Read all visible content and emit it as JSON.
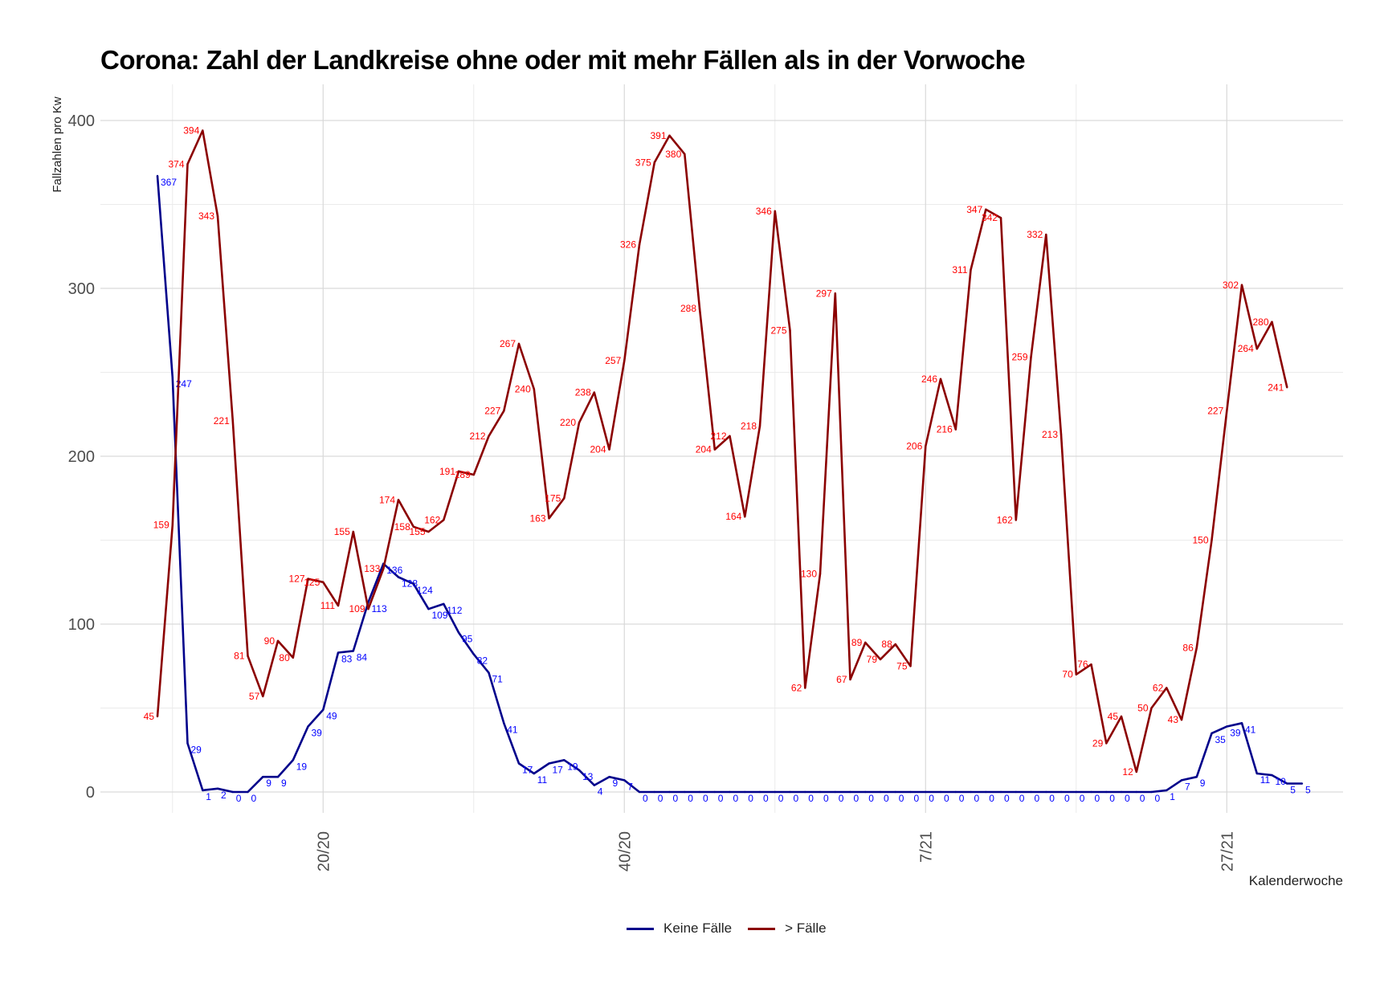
{
  "chart_data": {
    "type": "line",
    "title": "Corona: Zahl der Landkreise ohne oder mit mehr Fällen als in der Vorwoche",
    "xlabel": "Kalenderwoche",
    "ylabel": "Fallzahlen pro Kw",
    "ylim": [
      -20,
      410
    ],
    "y_ticks": [
      0,
      100,
      200,
      300,
      400
    ],
    "x_ticks": [
      {
        "index": 11,
        "label": "20/20"
      },
      {
        "index": 31,
        "label": "40/20"
      },
      {
        "index": 51,
        "label": "7/21"
      },
      {
        "index": 71,
        "label": "27/21"
      }
    ],
    "grid": true,
    "legend_position": "bottom",
    "series": [
      {
        "name": "Keine Fälle",
        "color": "#00008b",
        "label_color": "#0000ff",
        "values": [
          367,
          247,
          29,
          1,
          2,
          0,
          0,
          9,
          9,
          19,
          39,
          49,
          83,
          84,
          113,
          136,
          128,
          124,
          109,
          112,
          95,
          82,
          71,
          41,
          17,
          11,
          17,
          19,
          13,
          4,
          9,
          7,
          0,
          0,
          0,
          0,
          0,
          0,
          0,
          0,
          0,
          0,
          0,
          0,
          0,
          0,
          0,
          0,
          0,
          0,
          0,
          0,
          0,
          0,
          0,
          0,
          0,
          0,
          0,
          0,
          0,
          0,
          0,
          0,
          0,
          0,
          0,
          1,
          7,
          9,
          35,
          39,
          41,
          11,
          10,
          5,
          5
        ]
      },
      {
        "name": "> Fälle",
        "color": "#8b0000",
        "label_color": "#ff0000",
        "values": [
          45,
          159,
          374,
          394,
          343,
          221,
          81,
          57,
          90,
          80,
          127,
          125,
          111,
          155,
          109,
          133,
          174,
          158,
          155,
          162,
          191,
          189,
          212,
          227,
          267,
          240,
          163,
          175,
          220,
          238,
          204,
          257,
          326,
          375,
          391,
          380,
          288,
          204,
          212,
          164,
          218,
          346,
          275,
          62,
          130,
          297,
          67,
          89,
          79,
          88,
          75,
          206,
          246,
          216,
          311,
          347,
          342,
          162,
          259,
          332,
          213,
          70,
          76,
          29,
          45,
          12,
          50,
          62,
          43,
          86,
          150,
          227,
          302,
          264,
          280,
          241
        ]
      }
    ]
  }
}
